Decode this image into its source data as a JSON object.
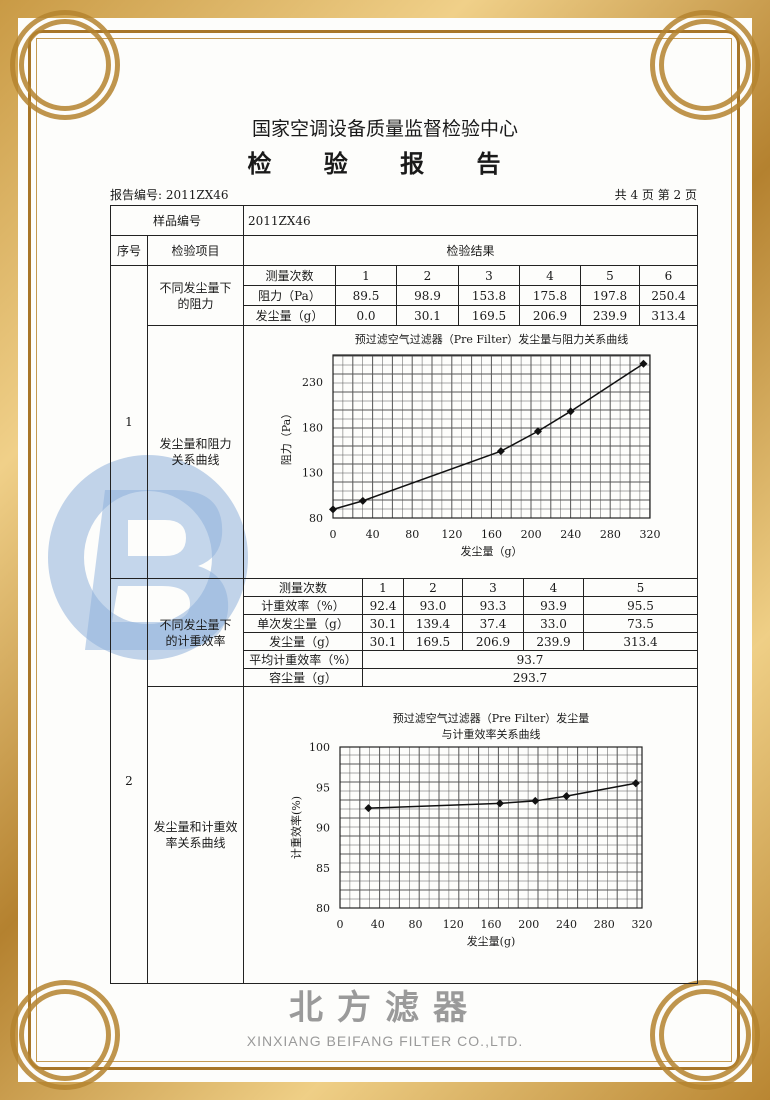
{
  "watermark": {
    "logo_letter": "B",
    "company_cn": "北方滤器",
    "company_en": "XINXIANG BEIFANG FILTER CO.,LTD."
  },
  "header": {
    "org": "国家空调设备质量监督检验中心",
    "title": "检 验 报 告",
    "report_no": "报告编号: 2011ZX46",
    "page_info": "共 4 页 第 2 页"
  },
  "table": {
    "sample_label": "样品编号",
    "sample_value": "2011ZX46",
    "col_no": "序号",
    "col_item": "检验项目",
    "col_result": "检验结果",
    "section1": {
      "no": "1",
      "item_a": "不同发尘量下\n的阻力",
      "item_b": "发尘量和阻力\n关系曲线",
      "rows": [
        [
          "测量次数",
          "1",
          "2",
          "3",
          "4",
          "5",
          "6"
        ],
        [
          "阻力（Pa）",
          "89.5",
          "98.9",
          "153.8",
          "175.8",
          "197.8",
          "250.4"
        ],
        [
          "发尘量（g）",
          "0.0",
          "30.1",
          "169.5",
          "206.9",
          "239.9",
          "313.4"
        ]
      ]
    },
    "section2": {
      "no": "2",
      "item_a": "不同发尘量下\n的计重效率",
      "item_b": "发尘量和计重效\n率关系曲线",
      "rows": [
        [
          "测量次数",
          "1",
          "2",
          "3",
          "4",
          "5"
        ],
        [
          "计重效率（%）",
          "92.4",
          "93.0",
          "93.3",
          "93.9",
          "95.5"
        ],
        [
          "单次发尘量（g）",
          "30.1",
          "139.4",
          "37.4",
          "33.0",
          "73.5"
        ],
        [
          "发尘量（g）",
          "30.1",
          "169.5",
          "206.9",
          "239.9",
          "313.4"
        ]
      ],
      "avg_label": "平均计重效率（%）",
      "avg_value": "93.7",
      "capacity_label": "容尘量（g）",
      "capacity_value": "293.7"
    }
  },
  "chart_data": [
    {
      "type": "line",
      "title": "预过滤空气过滤器（Pre Filter）发尘量与阻力关系曲线",
      "xlabel": "发尘量（g）",
      "ylabel": "阻力（Pa）",
      "x": [
        0.0,
        30.1,
        169.5,
        206.9,
        239.9,
        313.4
      ],
      "y": [
        89.5,
        98.9,
        153.8,
        175.8,
        197.8,
        250.4
      ],
      "xlim": [
        0,
        320
      ],
      "ylim": [
        80,
        260
      ],
      "xticks": [
        0,
        40,
        80,
        120,
        160,
        200,
        240,
        280,
        320
      ],
      "yticks": [
        80,
        130,
        180,
        230
      ],
      "grid": true
    },
    {
      "type": "line",
      "title": "预过滤空气过滤器（Pre Filter）发尘量",
      "title2": "与计重效率关系曲线",
      "xlabel": "发尘量(g)",
      "ylabel": "计重效率(%)",
      "x": [
        30.1,
        169.5,
        206.9,
        239.9,
        313.4
      ],
      "y": [
        92.4,
        93.0,
        93.3,
        93.9,
        95.5
      ],
      "xlim": [
        0,
        320
      ],
      "ylim": [
        80,
        100
      ],
      "xticks": [
        0,
        40,
        80,
        120,
        160,
        200,
        240,
        280,
        320
      ],
      "yticks": [
        80,
        85,
        90,
        95,
        100
      ],
      "grid": true
    }
  ]
}
